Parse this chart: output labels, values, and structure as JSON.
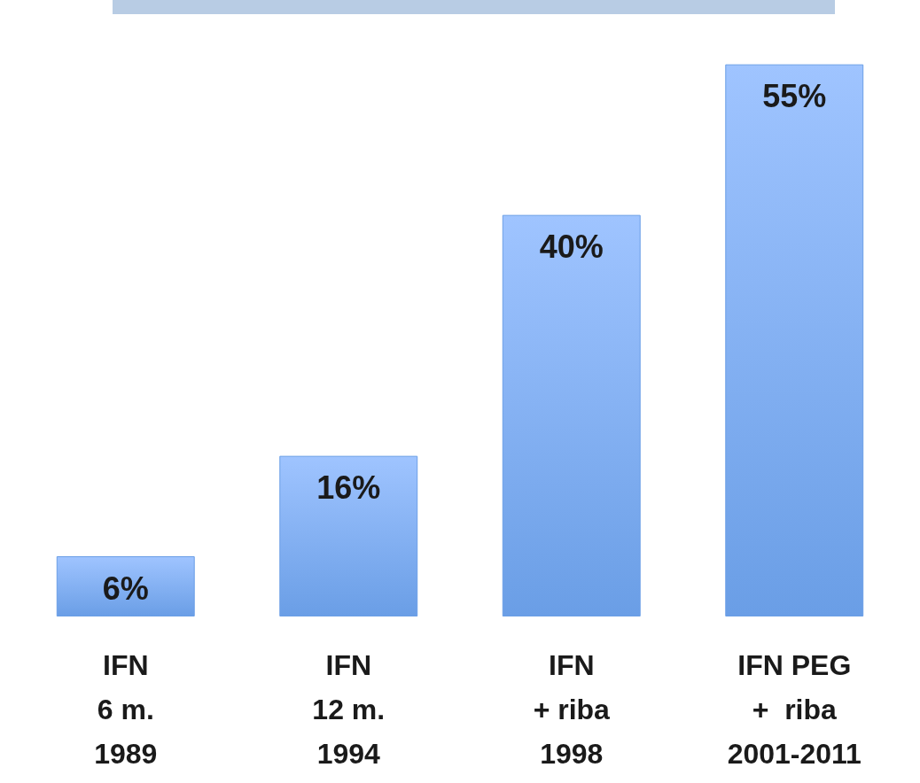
{
  "chart_data": {
    "type": "bar",
    "categories": [
      "IFN\n6 m.\n1989",
      "IFN\n12 m.\n1994",
      "IFN\n+ riba\n1998",
      "IFN PEG\n+  riba\n2001-2011"
    ],
    "values": [
      6,
      16,
      40,
      55
    ],
    "value_labels": [
      "6%",
      "16%",
      "40%",
      "55%"
    ],
    "color": "#6a9ee6"
  }
}
